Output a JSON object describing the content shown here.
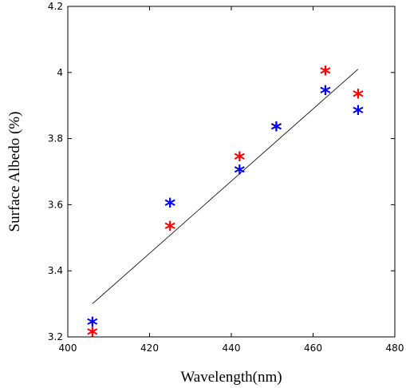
{
  "chart_data": {
    "type": "scatter",
    "title": "",
    "xlabel": "Wavelength(nm)",
    "ylabel": "Surface Albedo (%)",
    "xlim": [
      400,
      480
    ],
    "ylim": [
      3.2,
      4.2
    ],
    "xticks": [
      "400",
      "420",
      "440",
      "460",
      "480"
    ],
    "yticks": [
      "3.2",
      "3.4",
      "3.6",
      "3.8",
      "4",
      "4.2"
    ],
    "grid": false,
    "legend": "none",
    "marker": "*",
    "series": [
      {
        "color": "#ff0000",
        "points": [
          [
            406,
            3.21
          ],
          [
            425,
            3.53
          ],
          [
            442,
            3.74
          ],
          [
            451,
            3.83
          ],
          [
            463,
            4.0
          ],
          [
            471,
            3.93
          ]
        ]
      },
      {
        "color": "#0000ff",
        "points": [
          [
            406,
            3.24
          ],
          [
            425,
            3.6
          ],
          [
            442,
            3.7
          ],
          [
            451,
            3.83
          ],
          [
            463,
            3.94
          ],
          [
            471,
            3.88
          ]
        ]
      }
    ],
    "fit_line": {
      "color": "#000000",
      "points": [
        [
          406,
          3.3
        ],
        [
          471,
          4.01
        ]
      ]
    }
  }
}
